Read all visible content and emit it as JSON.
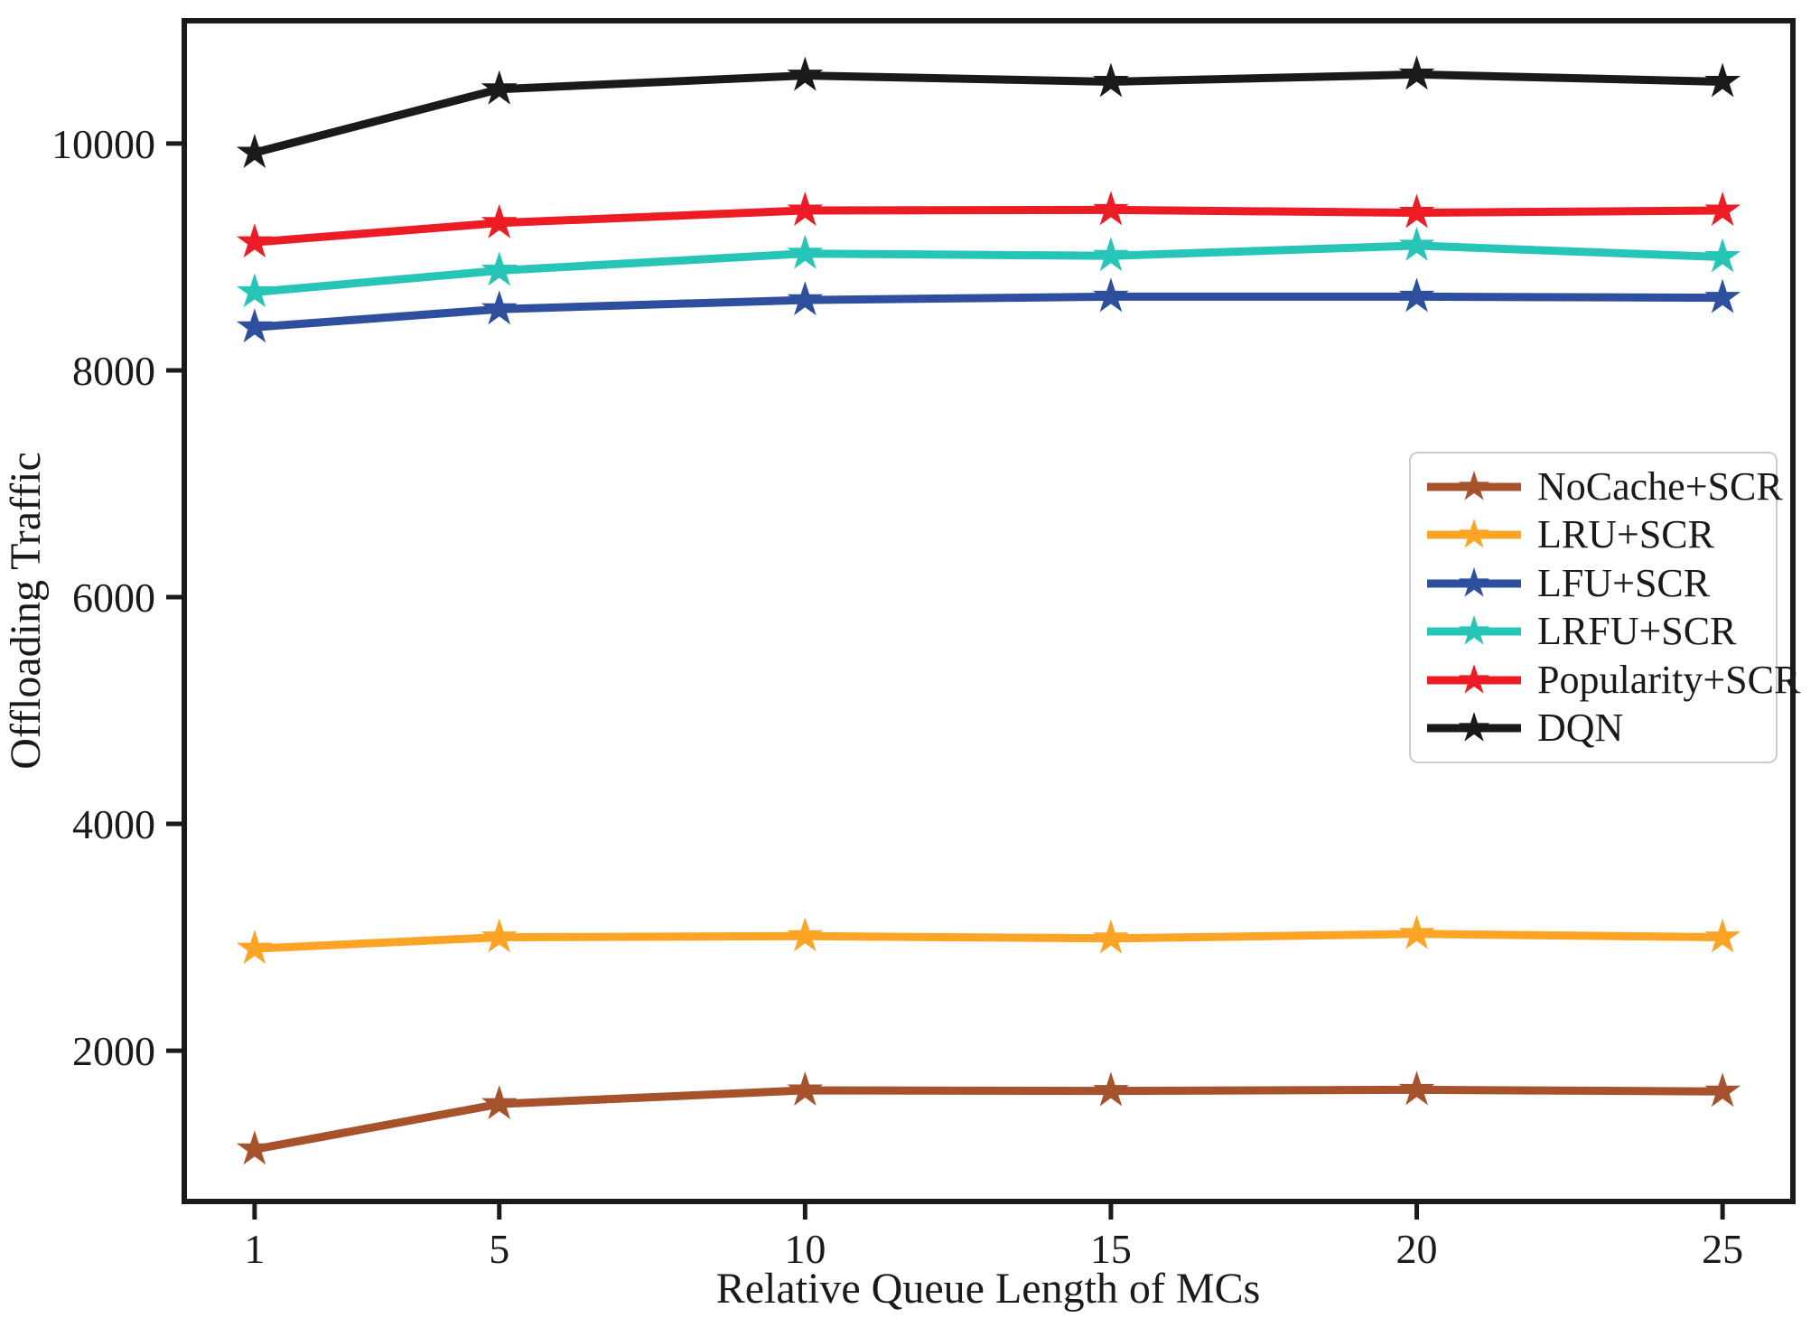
{
  "figure": {
    "background": "#ffffff",
    "axis_color": "#1a1a1a"
  },
  "chart_data": {
    "type": "line",
    "title": "",
    "xlabel": "Relative Queue Length of MCs",
    "ylabel": "Offloading Traffic",
    "x": [
      1,
      5,
      10,
      15,
      20,
      25
    ],
    "xtick_labels": [
      "1",
      "5",
      "10",
      "15",
      "20",
      "25"
    ],
    "yticks": [
      2000,
      4000,
      6000,
      8000,
      10000
    ],
    "ytick_labels": [
      "2000",
      "4000",
      "6000",
      "8000",
      "10000"
    ],
    "xlim": [
      -0.15,
      26.15
    ],
    "ylim": [
      670,
      11083
    ],
    "grid": false,
    "marker": "star",
    "legend_position": "center-right",
    "series": [
      {
        "name": "NoCache+SCR",
        "color": "#a5522d",
        "values": [
          1130,
          1530,
          1650,
          1645,
          1655,
          1640
        ]
      },
      {
        "name": "LRU+SCR",
        "color": "#fca426",
        "values": [
          2900,
          3000,
          3010,
          2990,
          3030,
          3000
        ]
      },
      {
        "name": "LFU+SCR",
        "color": "#2e4f9e",
        "values": [
          8380,
          8540,
          8620,
          8650,
          8650,
          8640
        ]
      },
      {
        "name": "LRFU+SCR",
        "color": "#27c4b8",
        "values": [
          8690,
          8880,
          9030,
          9010,
          9100,
          9000
        ]
      },
      {
        "name": "Popularity+SCR",
        "color": "#ec1c24",
        "values": [
          9130,
          9300,
          9410,
          9415,
          9390,
          9410
        ]
      },
      {
        "name": "DQN",
        "color": "#1a1a1a",
        "values": [
          9920,
          10480,
          10600,
          10545,
          10610,
          10545
        ]
      }
    ]
  }
}
